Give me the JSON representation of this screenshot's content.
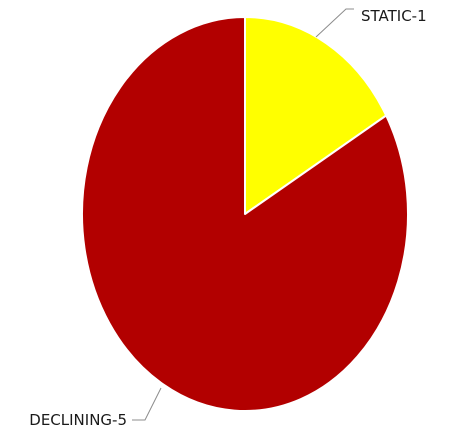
{
  "chart_data": {
    "type": "pie",
    "title": "",
    "start_angle": "top",
    "direction": "clockwise",
    "legend": "none",
    "slices": [
      {
        "label": "STATIC-1",
        "category": "STATIC",
        "value": 1,
        "color": "#ffff00"
      },
      {
        "label": "DECLINING-5",
        "category": "DECLINING",
        "value": 5,
        "color": "#b20000"
      }
    ]
  }
}
